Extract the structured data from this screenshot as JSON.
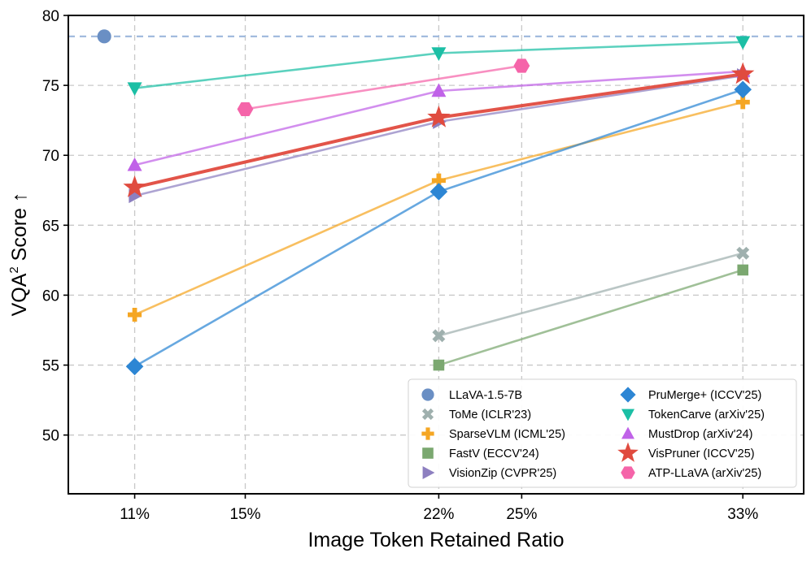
{
  "chart_data": {
    "type": "line",
    "title": "",
    "xlabel": "Image Token Retained Ratio",
    "ylabel": "VQA",
    "ylabel_sup": "2",
    "ylabel_suffix": " Score ↑",
    "xlim": [
      8.6,
      35.2
    ],
    "ylim": [
      45.8,
      80
    ],
    "x_ticks": [
      11,
      15,
      22,
      25,
      33
    ],
    "x_tick_labels": [
      "11%",
      "15%",
      "22%",
      "25%",
      "33%"
    ],
    "y_ticks": [
      50,
      55,
      60,
      65,
      70,
      75,
      80
    ],
    "y_tick_labels": [
      "50",
      "55",
      "60",
      "65",
      "70",
      "75",
      "80"
    ],
    "grid": true,
    "legend_position": "bottom-right",
    "reference": {
      "name": "LLaVA-1.5-7B",
      "y": 78.5,
      "marker_x": 9.9,
      "color": "#6a8fc4",
      "marker": "circle"
    },
    "series": [
      {
        "name": "ToMe (ICLR'23)",
        "color": "#9fb0ae",
        "marker": "x",
        "x": [
          22,
          33
        ],
        "values": [
          57.1,
          63.0
        ]
      },
      {
        "name": "SparseVLM (ICML'25)",
        "color": "#f5a623",
        "marker": "plus",
        "x": [
          11,
          22,
          33
        ],
        "values": [
          58.6,
          68.2,
          73.8
        ]
      },
      {
        "name": "FastV (ECCV'24)",
        "color": "#7ba870",
        "marker": "square",
        "x": [
          22,
          33
        ],
        "values": [
          55.0,
          61.8
        ]
      },
      {
        "name": "VisionZip (CVPR'25)",
        "color": "#8d7fc0",
        "marker": "triangle-right",
        "x": [
          11,
          22,
          33
        ],
        "values": [
          67.1,
          72.4,
          75.7
        ]
      },
      {
        "name": "PruMerge+ (ICCV'25)",
        "color": "#2d86d4",
        "marker": "diamond",
        "x": [
          11,
          22,
          33
        ],
        "values": [
          54.9,
          67.4,
          74.7
        ]
      },
      {
        "name": "TokenCarve (arXiv'25)",
        "color": "#1cbfa5",
        "marker": "triangle-down",
        "x": [
          11,
          22,
          33
        ],
        "values": [
          74.8,
          77.3,
          78.1
        ]
      },
      {
        "name": "MustDrop (arXiv'24)",
        "color": "#c062e8",
        "marker": "triangle-up",
        "x": [
          11,
          22,
          33
        ],
        "values": [
          69.3,
          74.6,
          76.0
        ]
      },
      {
        "name": "VisPruner (ICCV'25)",
        "color": "#e04b3f",
        "marker": "star",
        "x": [
          11,
          22,
          33
        ],
        "values": [
          67.7,
          72.7,
          75.8
        ]
      },
      {
        "name": "ATP-LLaVA (arXiv'25)",
        "color": "#f564a9",
        "marker": "hexagon",
        "x": [
          15,
          25
        ],
        "values": [
          73.3,
          76.4
        ]
      }
    ],
    "legend_left": [
      "LLaVA-1.5-7B",
      "ToMe (ICLR'23)",
      "SparseVLM (ICML'25)",
      "FastV (ECCV'24)",
      "VisionZip (CVPR'25)"
    ],
    "legend_right": [
      "PruMerge+ (ICCV'25)",
      "TokenCarve (arXiv'25)",
      "MustDrop (arXiv'24)",
      "VisPruner (ICCV'25)",
      "ATP-LLaVA (arXiv'25)"
    ]
  }
}
